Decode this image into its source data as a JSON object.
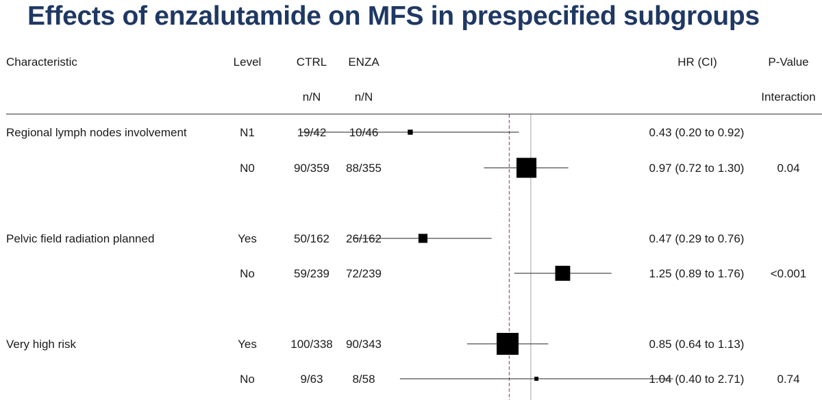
{
  "title": "Effects of enzalutamide on MFS in prespecified subgroups",
  "header": {
    "characteristic": "Characteristic",
    "level": "Level",
    "ctrl": "CTRL",
    "enza": "ENZA",
    "nN_ctrl": "n/N",
    "nN_enza": "n/N",
    "hr": "HR (CI)",
    "pvalue": "P-Value",
    "interaction": "Interaction"
  },
  "chart_data": {
    "type": "forest",
    "reference_line": 1,
    "overall_line": 0.86,
    "reference_line_color": "#c0c0c0",
    "overall_line_color": "#c0407a",
    "rows": [
      {
        "characteristic": "Regional lymph nodes involvement",
        "level": "N1",
        "ctrl": "19/42",
        "enza": "10/46",
        "hr": 0.43,
        "lo": 0.2,
        "hi": 0.92,
        "hr_text": "0.43 (0.20 to 0.92)",
        "p": "",
        "weight": 0.15
      },
      {
        "characteristic": "",
        "level": "N0",
        "ctrl": "90/359",
        "enza": "88/355",
        "hr": 0.97,
        "lo": 0.72,
        "hi": 1.3,
        "hr_text": "0.97 (0.72 to 1.30)",
        "p": "0.04",
        "weight": 0.9
      },
      {
        "characteristic": "Pelvic field radiation planned",
        "level": "Yes",
        "ctrl": "50/162",
        "enza": "26/162",
        "hr": 0.47,
        "lo": 0.29,
        "hi": 0.76,
        "hr_text": "0.47 (0.29 to 0.76)",
        "p": "",
        "weight": 0.35
      },
      {
        "characteristic": "",
        "level": "No",
        "ctrl": "59/239",
        "enza": "72/239",
        "hr": 1.25,
        "lo": 0.89,
        "hi": 1.76,
        "hr_text": "1.25 (0.89 to 1.76)",
        "p": "<0.001",
        "weight": 0.65
      },
      {
        "characteristic": "Very high risk",
        "level": "Yes",
        "ctrl": "100/338",
        "enza": "90/343",
        "hr": 0.85,
        "lo": 0.64,
        "hi": 1.13,
        "hr_text": "0.85 (0.64 to 1.13)",
        "p": "",
        "weight": 1.0
      },
      {
        "characteristic": "",
        "level": "No",
        "ctrl": "9/63",
        "enza": "8/58",
        "hr": 1.04,
        "lo": 0.4,
        "hi": 2.71,
        "hr_text": "1.04 (0.40 to 2.71)",
        "p": "0.74",
        "weight": 0.1
      }
    ]
  }
}
